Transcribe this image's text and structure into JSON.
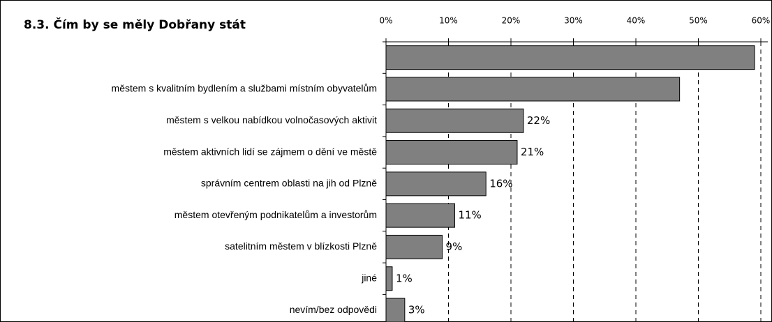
{
  "chart_data": {
    "type": "bar",
    "orientation": "horizontal",
    "title": "8.3. Čím by se měly Dobřany stát",
    "categories": [
      null,
      "městem s kvalitním bydlením a službami místním obyvatelům",
      "městem s velkou nabídkou volnočasových aktivit",
      "městem aktivních lidí se zájmem o dění ve městě",
      "správním centrem oblasti na jih od Plzně",
      "městem otevřeným podnikatelům a investorům",
      "satelitním městem v blízkosti Plzně",
      "jiné",
      "nevím/bez odpovědi"
    ],
    "values": [
      59,
      47,
      22,
      21,
      16,
      11,
      9,
      1,
      3
    ],
    "value_labels": [
      null,
      null,
      "22%",
      "21%",
      "16%",
      "11%",
      "9%",
      "1%",
      "3%"
    ],
    "color": "#808080",
    "xlim": [
      0,
      60
    ],
    "xticks": [
      {
        "value": 0,
        "label": "0%"
      },
      {
        "value": 10,
        "label": "10%"
      },
      {
        "value": 20,
        "label": "20%"
      },
      {
        "value": 30,
        "label": "30%"
      },
      {
        "value": 40,
        "label": "40%"
      },
      {
        "value": 50,
        "label": "50%"
      },
      {
        "value": 60,
        "label": "60%"
      }
    ],
    "grid": true
  }
}
